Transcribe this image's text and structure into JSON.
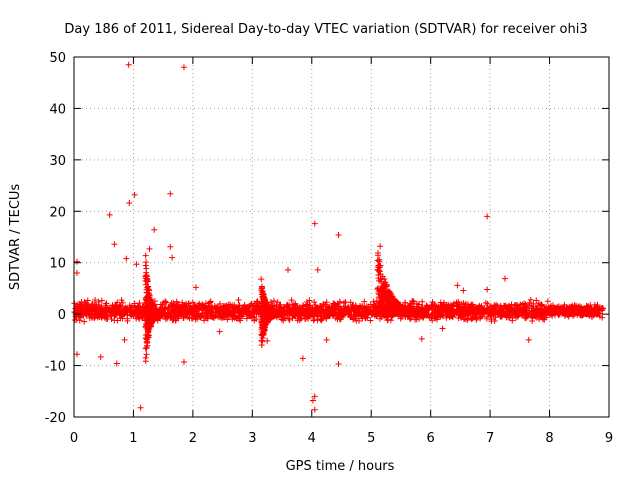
{
  "chart_data": {
    "type": "scatter",
    "title": "Day 186 of 2011, Sidereal Day-to-day VTEC variation (SDTVAR) for receiver ohi3",
    "xlabel": "GPS time / hours",
    "ylabel": "SDTVAR / TECUs",
    "xlim": [
      0,
      9
    ],
    "ylim": [
      -20,
      50
    ],
    "xticks": [
      0,
      1,
      2,
      3,
      4,
      5,
      6,
      7,
      8,
      9
    ],
    "yticks": [
      -20,
      -10,
      0,
      10,
      20,
      30,
      40,
      50
    ],
    "grid": true,
    "legend": "none",
    "marker": "+",
    "color": "#ff0000",
    "series": [
      {
        "name": "SDTVAR",
        "band_description": "dense band of points roughly between -2 and 2 TECU across 0 to 8.9 hours",
        "outliers": [
          {
            "x": 0.92,
            "y": 48.5
          },
          {
            "x": 1.85,
            "y": 48.0
          },
          {
            "x": 1.02,
            "y": 23.2
          },
          {
            "x": 1.62,
            "y": 23.4
          },
          {
            "x": 0.93,
            "y": 21.6
          },
          {
            "x": 0.6,
            "y": 19.3
          },
          {
            "x": 6.95,
            "y": 19.0
          },
          {
            "x": 4.05,
            "y": 17.6
          },
          {
            "x": 1.35,
            "y": 16.4
          },
          {
            "x": 4.45,
            "y": 15.4
          },
          {
            "x": 0.68,
            "y": 13.6
          },
          {
            "x": 1.62,
            "y": 13.1
          },
          {
            "x": 1.27,
            "y": 12.7
          },
          {
            "x": 5.15,
            "y": 13.2
          },
          {
            "x": 0.05,
            "y": 10.2
          },
          {
            "x": 1.65,
            "y": 11.0
          },
          {
            "x": 0.88,
            "y": 10.8
          },
          {
            "x": 1.05,
            "y": 9.7
          },
          {
            "x": 0.05,
            "y": 8.0
          },
          {
            "x": 3.6,
            "y": 8.6
          },
          {
            "x": 4.1,
            "y": 8.6
          },
          {
            "x": 7.25,
            "y": 6.9
          },
          {
            "x": 3.15,
            "y": 6.8
          },
          {
            "x": 6.45,
            "y": 5.6
          },
          {
            "x": 2.05,
            "y": 5.2
          },
          {
            "x": 6.95,
            "y": 4.8
          },
          {
            "x": 6.55,
            "y": 4.6
          },
          {
            "x": 0.85,
            "y": -5.0
          },
          {
            "x": 0.45,
            "y": -8.3
          },
          {
            "x": 0.05,
            "y": -7.8
          },
          {
            "x": 1.85,
            "y": -9.3
          },
          {
            "x": 0.72,
            "y": -9.6
          },
          {
            "x": 4.45,
            "y": -9.7
          },
          {
            "x": 3.85,
            "y": -8.6
          },
          {
            "x": 7.65,
            "y": -5.0
          },
          {
            "x": 5.85,
            "y": -4.8
          },
          {
            "x": 1.12,
            "y": -18.2
          },
          {
            "x": 4.05,
            "y": -16.0
          },
          {
            "x": 4.02,
            "y": -16.8
          },
          {
            "x": 4.05,
            "y": -18.6
          },
          {
            "x": 3.25,
            "y": -5.2
          },
          {
            "x": 4.25,
            "y": -5.0
          },
          {
            "x": 2.45,
            "y": -3.4
          },
          {
            "x": 8.25,
            "y": 1.8
          },
          {
            "x": 8.35,
            "y": 1.2
          },
          {
            "x": 6.2,
            "y": -2.8
          }
        ],
        "spikes": [
          {
            "x_start": 1.2,
            "x_end": 1.45,
            "peak": 12.5,
            "trough": -11.0
          },
          {
            "x_start": 5.1,
            "x_end": 5.9,
            "peak": 13.0,
            "trough": 0.0
          },
          {
            "x_start": 3.15,
            "x_end": 3.45,
            "peak": 6.5,
            "trough": -7.0
          }
        ]
      }
    ]
  }
}
